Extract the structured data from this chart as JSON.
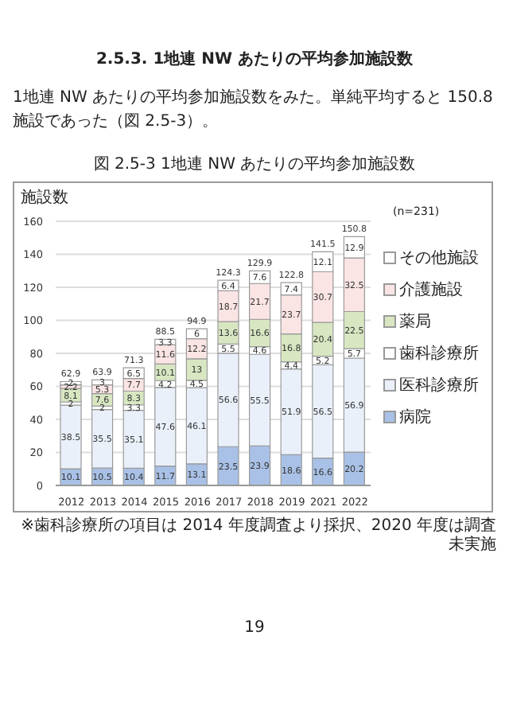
{
  "chart_data": {
    "type": "bar",
    "title": "図 2.5-3 1地連 NW あたりの平均参加施設数",
    "ylabel": "施設数",
    "annotations": [
      "2.5.3. 1地連 NW あたりの平均参加施設数",
      "1地連 NW あたりの平均参加施設数をみた。単純平均すると 150.8 施設であった（図 2.5-3）。",
      "(n=231)",
      "※歯科診療所の項目は 2014 年度調査より採択、2020 年度は調査未実施",
      "19"
    ],
    "categories": [
      "2012",
      "2013",
      "2014",
      "2015",
      "2016",
      "2017",
      "2018",
      "2019",
      "2021",
      "2022"
    ],
    "stacked": true,
    "data_labels": true,
    "grid": "y",
    "legend": "right",
    "ylim": [
      0,
      160
    ],
    "yticks": [
      0,
      20,
      40,
      60,
      80,
      100,
      120,
      140,
      160
    ],
    "totals": [
      "62.9",
      "63.9",
      "71.3",
      "88.5",
      "94.9",
      "124.3",
      "129.9",
      "122.8",
      "141.5",
      "150.8"
    ],
    "series": [
      {
        "name": "病院",
        "color": "#a9c1e6",
        "values": [
          10.1,
          10.5,
          10.4,
          11.7,
          13.1,
          23.5,
          23.9,
          18.6,
          16.6,
          20.2
        ]
      },
      {
        "name": "医科診療所",
        "color": "#eaf0fa",
        "values": [
          38.5,
          35.5,
          35.1,
          47.6,
          46.1,
          56.6,
          55.5,
          51.9,
          56.5,
          56.9
        ]
      },
      {
        "name": "歯科診療所",
        "color": "#ffffff",
        "values": [
          2.0,
          2.0,
          3.3,
          4.2,
          4.5,
          5.5,
          4.6,
          4.4,
          5.2,
          5.7
        ]
      },
      {
        "name": "薬局",
        "color": "#d8e7c2",
        "values": [
          8.1,
          7.6,
          8.3,
          10.1,
          13.0,
          13.6,
          16.6,
          16.8,
          20.4,
          22.5
        ]
      },
      {
        "name": "介護施設",
        "color": "#fbe4e4",
        "values": [
          2.2,
          5.3,
          7.7,
          11.6,
          12.2,
          18.7,
          21.7,
          23.7,
          30.7,
          32.5
        ]
      },
      {
        "name": "その他施設",
        "color": "#ffffff",
        "values": [
          2.0,
          3.0,
          6.5,
          3.3,
          6.0,
          6.4,
          7.6,
          7.4,
          12.1,
          12.9
        ]
      }
    ]
  }
}
